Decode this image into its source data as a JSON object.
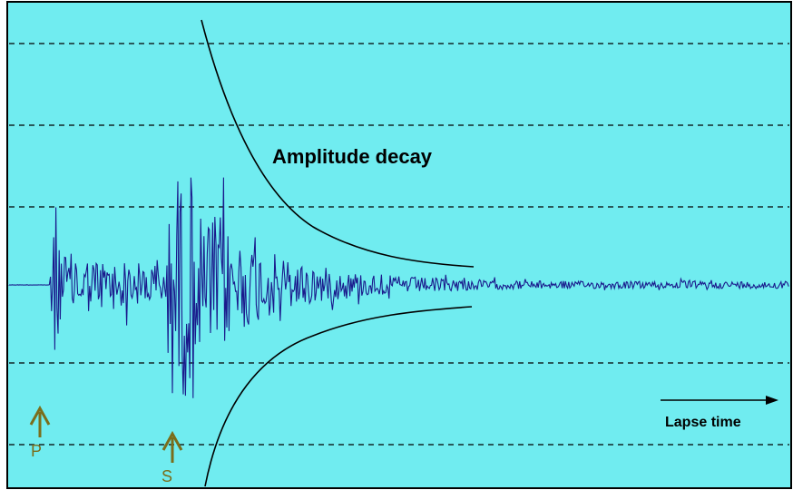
{
  "colors": {
    "background": "#70ecf0",
    "frame": "#000000",
    "trace": "#1a1a8c",
    "gridline": "#000000",
    "envelope": "#000000",
    "marker": "#7a6e1c",
    "text": "#000000"
  },
  "annotations": {
    "envelope_label": "Amplitude decay",
    "time_arrow_label": "Lapse time"
  },
  "markers": [
    {
      "label": "P",
      "icon": "up-arrow-icon"
    },
    {
      "label": "S",
      "icon": "up-arrow-icon"
    }
  ]
}
